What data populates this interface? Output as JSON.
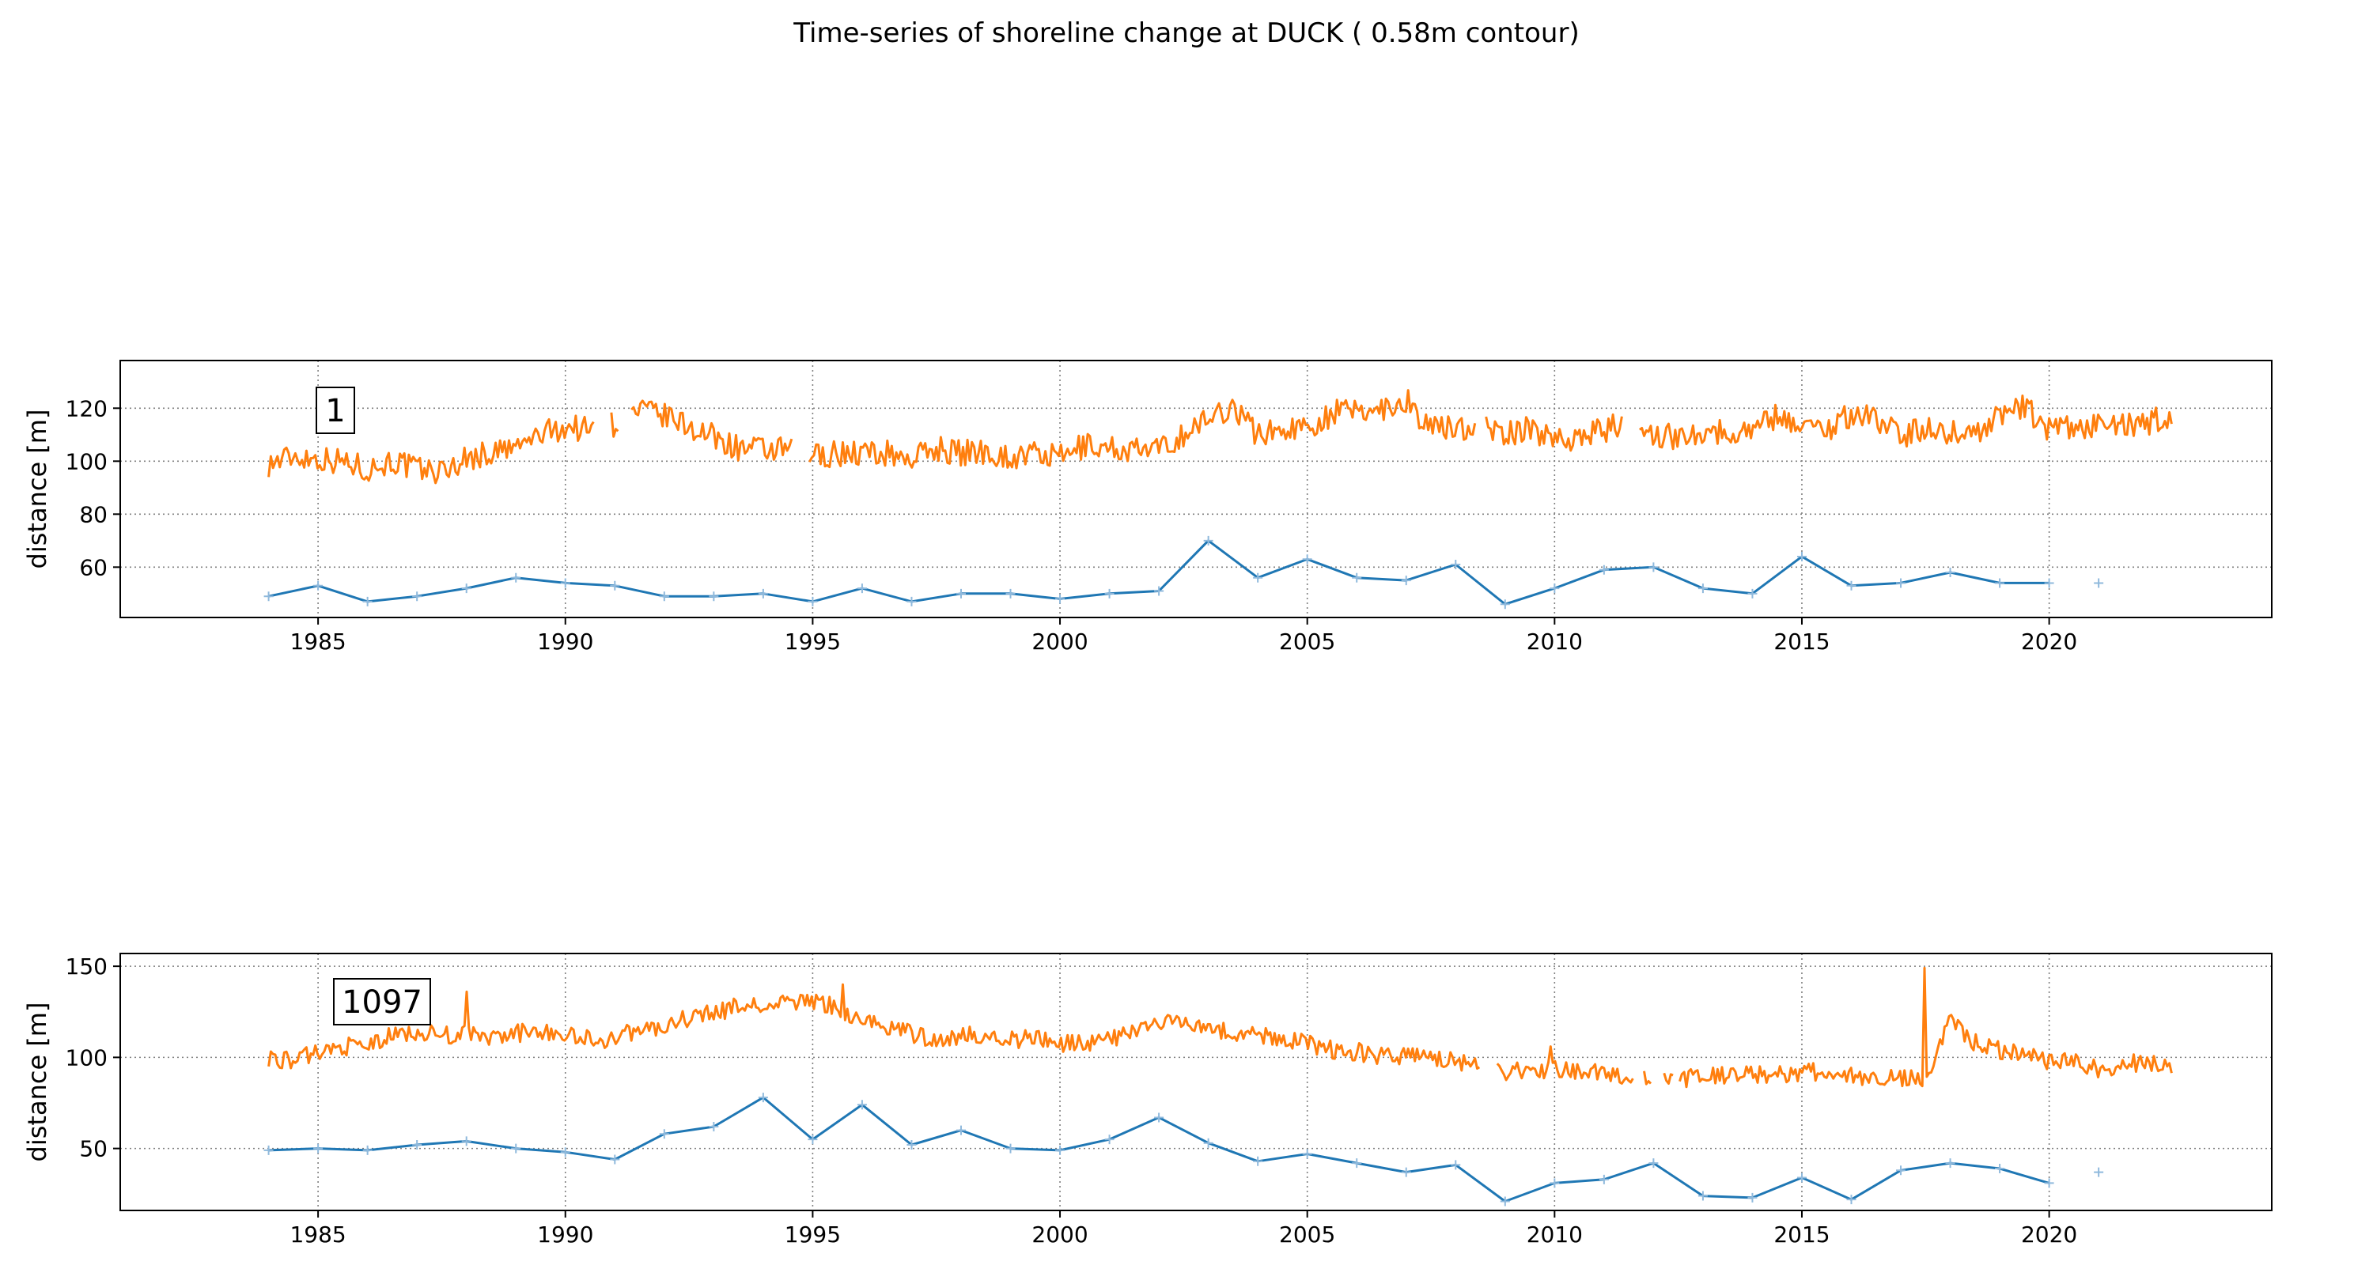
{
  "figure": {
    "title": "Time-series of shoreline change at DUCK ( 0.58m contour)"
  },
  "colors": {
    "survey": "#1f77b4",
    "satellite": "#ff7f0e",
    "grid": "#7f7f7f"
  },
  "chart_data": [
    {
      "type": "line",
      "panel_label": "1",
      "ylabel": "distance [m]",
      "xlim": [
        1981.0,
        2024.5
      ],
      "ylim": [
        41,
        138
      ],
      "yticks": [
        60,
        80,
        100,
        120
      ],
      "xticks": [
        1985,
        1990,
        1995,
        2000,
        2005,
        2010,
        2015,
        2020
      ],
      "grid": true,
      "series": [
        {
          "color": "#1f77b4",
          "marker": "+",
          "x": [
            1984,
            1985,
            1986,
            1987,
            1988,
            1989,
            1990,
            1991,
            1992,
            1993,
            1994,
            1995,
            1996,
            1997,
            1998,
            1999,
            2000,
            2001,
            2002,
            2003,
            2004,
            2005,
            2006,
            2007,
            2008,
            2009,
            2010,
            2011,
            2012,
            2013,
            2014,
            2015,
            2016,
            2017,
            2018,
            2019,
            2020
          ],
          "y": [
            49,
            53,
            47,
            49,
            52,
            56,
            54,
            53,
            49,
            49,
            50,
            47,
            52,
            47,
            50,
            50,
            48,
            50,
            51,
            70,
            56,
            63,
            56,
            55,
            61,
            46,
            52,
            59,
            60,
            52,
            50,
            64,
            53,
            54,
            58,
            54,
            54
          ],
          "isolated_points": {
            "x": [
              2021
            ],
            "y": [
              54
            ]
          }
        },
        {
          "color": "#ff7f0e",
          "anchors_x": [
            1984.0,
            1984.5,
            1985.0,
            1985.5,
            1986.0,
            1986.5,
            1987.0,
            1987.5,
            1988.0,
            1988.5,
            1989.0,
            1989.5,
            1990.0,
            1990.5,
            1991.0,
            1991.5,
            1992.0,
            1992.5,
            1993.0,
            1993.5,
            1994.0,
            1994.5,
            1995.0,
            1995.5,
            1996.0,
            1996.5,
            1997.0,
            1997.5,
            1998.0,
            1998.5,
            1999.0,
            1999.5,
            2000.0,
            2000.5,
            2001.0,
            2001.5,
            2002.0,
            2002.5,
            2003.0,
            2003.5,
            2004.0,
            2004.5,
            2005.0,
            2005.5,
            2006.0,
            2006.5,
            2007.0,
            2007.5,
            2008.0,
            2008.5,
            2009.0,
            2009.5,
            2010.0,
            2010.5,
            2011.0,
            2011.5,
            2012.0,
            2012.5,
            2013.0,
            2013.5,
            2014.0,
            2014.5,
            2015.0,
            2015.5,
            2016.0,
            2016.5,
            2017.0,
            2017.5,
            2018.0,
            2018.5,
            2019.0,
            2019.5,
            2020.0,
            2020.5,
            2021.0,
            2021.5,
            2022.0,
            2022.5
          ],
          "anchors_y": [
            99,
            102,
            101,
            100,
            97,
            100,
            97,
            96,
            101,
            103,
            105,
            110,
            113,
            112,
            114,
            119,
            117,
            113,
            109,
            105,
            104,
            104,
            102,
            103,
            103,
            103,
            101,
            105,
            103,
            104,
            101,
            103,
            101,
            106,
            105,
            104,
            104,
            110,
            116,
            121,
            110,
            112,
            113,
            118,
            119,
            120,
            123,
            112,
            113,
            113,
            110,
            112,
            109,
            109,
            112,
            114,
            110,
            109,
            112,
            110,
            113,
            117,
            114,
            112,
            118,
            116,
            110,
            112,
            111,
            110,
            118,
            120,
            112,
            112,
            114,
            113,
            114,
            118
          ],
          "noise_amplitude": 5,
          "gaps": [
            [
              1990.6,
              1990.9
            ],
            [
              1991.1,
              1991.3
            ],
            [
              1994.6,
              1994.9
            ],
            [
              2008.4,
              2008.6
            ],
            [
              2011.4,
              2011.7
            ]
          ]
        }
      ]
    },
    {
      "type": "line",
      "panel_label": "1097",
      "ylabel": "distance [m]",
      "xlim": [
        1981.0,
        2024.5
      ],
      "ylim": [
        16,
        157
      ],
      "yticks": [
        50,
        100,
        150
      ],
      "xticks": [
        1985,
        1990,
        1995,
        2000,
        2005,
        2010,
        2015,
        2020
      ],
      "grid": true,
      "series": [
        {
          "color": "#1f77b4",
          "marker": "+",
          "x": [
            1984,
            1985,
            1986,
            1987,
            1988,
            1989,
            1990,
            1991,
            1992,
            1993,
            1994,
            1995,
            1996,
            1997,
            1998,
            1999,
            2000,
            2001,
            2002,
            2003,
            2004,
            2005,
            2006,
            2007,
            2008,
            2009,
            2010,
            2011,
            2012,
            2013,
            2014,
            2015,
            2016,
            2017,
            2018,
            2019,
            2020
          ],
          "y": [
            49,
            50,
            49,
            52,
            54,
            50,
            48,
            44,
            58,
            62,
            78,
            55,
            74,
            52,
            60,
            50,
            49,
            55,
            67,
            53,
            43,
            47,
            42,
            37,
            41,
            21,
            31,
            33,
            42,
            24,
            23,
            34,
            22,
            38,
            42,
            39,
            31
          ],
          "isolated_points": {
            "x": [
              2021
            ],
            "y": [
              37
            ]
          }
        },
        {
          "color": "#ff7f0e",
          "anchors_x": [
            1984.0,
            1984.5,
            1985.0,
            1985.5,
            1986.0,
            1986.5,
            1987.0,
            1987.5,
            1988.0,
            1988.5,
            1989.0,
            1989.5,
            1990.0,
            1990.5,
            1991.0,
            1991.5,
            1992.0,
            1992.5,
            1993.0,
            1993.5,
            1994.0,
            1994.5,
            1995.0,
            1995.5,
            1996.0,
            1996.5,
            1997.0,
            1997.5,
            1998.0,
            1998.5,
            1999.0,
            1999.5,
            2000.0,
            2000.5,
            2001.0,
            2001.5,
            2002.0,
            2002.5,
            2003.0,
            2003.5,
            2004.0,
            2004.5,
            2005.0,
            2005.5,
            2006.0,
            2006.5,
            2007.0,
            2007.5,
            2008.0,
            2008.5,
            2009.0,
            2009.5,
            2010.0,
            2010.5,
            2011.0,
            2011.5,
            2012.0,
            2012.5,
            2013.0,
            2013.5,
            2014.0,
            2014.5,
            2015.0,
            2015.5,
            2016.0,
            2016.5,
            2017.0,
            2017.5,
            2018.0,
            2018.5,
            2019.0,
            2019.5,
            2020.0,
            2020.5,
            2021.0,
            2021.5,
            2022.0,
            2022.5
          ],
          "anchors_y": [
            100,
            98,
            103,
            106,
            106,
            112,
            114,
            112,
            113,
            110,
            113,
            115,
            112,
            110,
            110,
            116,
            116,
            122,
            124,
            128,
            128,
            130,
            131,
            127,
            120,
            117,
            113,
            110,
            112,
            112,
            110,
            110,
            108,
            108,
            110,
            114,
            118,
            120,
            118,
            112,
            112,
            110,
            108,
            104,
            103,
            101,
            100,
            100,
            98,
            97,
            92,
            93,
            94,
            92,
            91,
            88,
            90,
            88,
            89,
            90,
            91,
            91,
            92,
            92,
            91,
            88,
            89,
            88,
            120,
            108,
            104,
            102,
            98,
            98,
            94,
            96,
            98,
            92
          ],
          "noise_amplitude": 5,
          "spikes": [
            {
              "x": 1988.0,
              "y": 136
            },
            {
              "x": 1995.6,
              "y": 140
            },
            {
              "x": 2017.5,
              "y": 149
            },
            {
              "x": 2009.9,
              "y": 106
            }
          ],
          "gaps": [
            [
              2008.5,
              2008.8
            ],
            [
              2011.6,
              2011.8
            ],
            [
              2011.95,
              2012.2
            ],
            [
              2012.4,
              2012.5
            ]
          ]
        }
      ]
    }
  ]
}
